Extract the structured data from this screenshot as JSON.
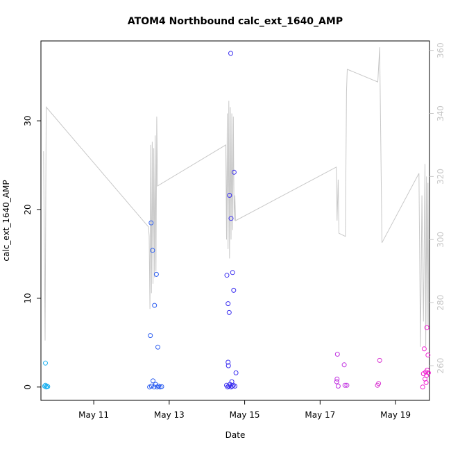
{
  "chart_data": {
    "type": "scatter",
    "title": "ATOM4 Northbound calc_ext_1640_AMP",
    "xlabel": "Date",
    "ylabel": "calc_ext_1640_AMP",
    "xlim_days": [
      9.6,
      19.9
    ],
    "ylim": [
      -1.5,
      39
    ],
    "ylim_right": [
      249,
      363
    ],
    "x_ticks": [
      {
        "day": 11,
        "label": "May 11"
      },
      {
        "day": 13,
        "label": "May 13"
      },
      {
        "day": 15,
        "label": "May 15"
      },
      {
        "day": 17,
        "label": "May 17"
      },
      {
        "day": 19,
        "label": "May 19"
      }
    ],
    "y_ticks": [
      {
        "value": 0,
        "label": "0"
      },
      {
        "value": 10,
        "label": "10"
      },
      {
        "value": 20,
        "label": "20"
      },
      {
        "value": 30,
        "label": "30"
      }
    ],
    "y2_ticks": [
      {
        "value": 260,
        "label": "260"
      },
      {
        "value": 280,
        "label": "280"
      },
      {
        "value": 300,
        "label": "300"
      },
      {
        "value": 320,
        "label": "320"
      },
      {
        "value": 340,
        "label": "340"
      },
      {
        "value": 360,
        "label": "360"
      }
    ],
    "scatter_series": [
      {
        "day": 9.72,
        "value": 2.7,
        "color": "#1ab0f0"
      },
      {
        "day": 9.7,
        "value": 0.1,
        "color": "#1ab0f0"
      },
      {
        "day": 9.72,
        "value": 0.2,
        "color": "#1ab0f0"
      },
      {
        "day": 9.74,
        "value": 0.0,
        "color": "#1ab0f0"
      },
      {
        "day": 9.76,
        "value": 0.1,
        "color": "#1ab0f0"
      },
      {
        "day": 9.78,
        "value": 0.05,
        "color": "#1ab0f0"
      },
      {
        "day": 12.52,
        "value": 18.5,
        "color": "#2a5cf0"
      },
      {
        "day": 12.56,
        "value": 15.4,
        "color": "#2a5cf0"
      },
      {
        "day": 12.66,
        "value": 12.7,
        "color": "#2a5cf0"
      },
      {
        "day": 12.61,
        "value": 9.2,
        "color": "#2a5cf0"
      },
      {
        "day": 12.5,
        "value": 5.8,
        "color": "#2a5cf0"
      },
      {
        "day": 12.7,
        "value": 4.5,
        "color": "#2a5cf0"
      },
      {
        "day": 12.57,
        "value": 0.7,
        "color": "#2a5cf0"
      },
      {
        "day": 12.48,
        "value": 0.0,
        "color": "#2a5cf0"
      },
      {
        "day": 12.53,
        "value": 0.1,
        "color": "#2a5cf0"
      },
      {
        "day": 12.6,
        "value": 0.0,
        "color": "#2a5cf0"
      },
      {
        "day": 12.64,
        "value": 0.3,
        "color": "#2a5cf0"
      },
      {
        "day": 12.68,
        "value": 0.0,
        "color": "#2a5cf0"
      },
      {
        "day": 12.72,
        "value": 0.1,
        "color": "#2a5cf0"
      },
      {
        "day": 12.76,
        "value": 0.0,
        "color": "#2a5cf0"
      },
      {
        "day": 12.8,
        "value": 0.05,
        "color": "#2a5cf0"
      },
      {
        "day": 14.63,
        "value": 37.6,
        "color": "#3a2ef0"
      },
      {
        "day": 14.72,
        "value": 24.2,
        "color": "#3a2ef0"
      },
      {
        "day": 14.6,
        "value": 21.6,
        "color": "#3a2ef0"
      },
      {
        "day": 14.64,
        "value": 19.0,
        "color": "#3a2ef0"
      },
      {
        "day": 14.68,
        "value": 12.9,
        "color": "#3a2ef0"
      },
      {
        "day": 14.53,
        "value": 12.6,
        "color": "#3a2ef0"
      },
      {
        "day": 14.71,
        "value": 10.9,
        "color": "#3a2ef0"
      },
      {
        "day": 14.56,
        "value": 9.4,
        "color": "#3a2ef0"
      },
      {
        "day": 14.59,
        "value": 8.4,
        "color": "#3a2ef0"
      },
      {
        "day": 14.56,
        "value": 2.8,
        "color": "#3a2ef0"
      },
      {
        "day": 14.57,
        "value": 2.4,
        "color": "#3a2ef0"
      },
      {
        "day": 14.77,
        "value": 1.6,
        "color": "#3a2ef0"
      },
      {
        "day": 14.66,
        "value": 0.6,
        "color": "#3a2ef0"
      },
      {
        "day": 14.52,
        "value": 0.2,
        "color": "#3a2ef0"
      },
      {
        "day": 14.55,
        "value": 0.0,
        "color": "#3a2ef0"
      },
      {
        "day": 14.58,
        "value": 0.1,
        "color": "#3a2ef0"
      },
      {
        "day": 14.61,
        "value": 0.3,
        "color": "#3a2ef0"
      },
      {
        "day": 14.64,
        "value": 0.0,
        "color": "#3a2ef0"
      },
      {
        "day": 14.67,
        "value": 0.1,
        "color": "#3a2ef0"
      },
      {
        "day": 14.7,
        "value": 0.2,
        "color": "#3a2ef0"
      },
      {
        "day": 14.74,
        "value": 0.1,
        "color": "#3a2ef0"
      },
      {
        "day": 17.46,
        "value": 3.7,
        "color": "#c030e0"
      },
      {
        "day": 17.45,
        "value": 0.9,
        "color": "#c030e0"
      },
      {
        "day": 17.44,
        "value": 0.6,
        "color": "#c030e0"
      },
      {
        "day": 17.48,
        "value": 0.1,
        "color": "#c030e0"
      },
      {
        "day": 17.64,
        "value": 2.5,
        "color": "#c030e0"
      },
      {
        "day": 17.66,
        "value": 0.2,
        "color": "#c030e0"
      },
      {
        "day": 17.71,
        "value": 0.2,
        "color": "#c030e0"
      },
      {
        "day": 18.58,
        "value": 3.0,
        "color": "#d830d0"
      },
      {
        "day": 18.55,
        "value": 0.4,
        "color": "#d830d0"
      },
      {
        "day": 18.52,
        "value": 0.2,
        "color": "#d830d0"
      },
      {
        "day": 19.83,
        "value": 6.7,
        "color": "#f020d0"
      },
      {
        "day": 19.76,
        "value": 4.3,
        "color": "#f020d0"
      },
      {
        "day": 19.86,
        "value": 3.6,
        "color": "#f020d0"
      },
      {
        "day": 19.74,
        "value": 1.5,
        "color": "#f020d0"
      },
      {
        "day": 19.8,
        "value": 1.7,
        "color": "#f020d0"
      },
      {
        "day": 19.84,
        "value": 1.9,
        "color": "#f020d0"
      },
      {
        "day": 19.82,
        "value": 1.3,
        "color": "#f020d0"
      },
      {
        "day": 19.78,
        "value": 0.9,
        "color": "#f020d0"
      },
      {
        "day": 19.81,
        "value": 0.5,
        "color": "#f020d0"
      },
      {
        "day": 19.72,
        "value": 0.0,
        "color": "#f020d0"
      },
      {
        "day": 19.87,
        "value": 1.6,
        "color": "#f020d0"
      }
    ],
    "line_series": {
      "name": "secondary (right axis)",
      "color": "#c8c8c8",
      "points": [
        [
          9.67,
          328
        ],
        [
          9.71,
          268
        ],
        [
          9.74,
          342
        ],
        [
          12.45,
          304
        ],
        [
          12.47,
          301
        ],
        [
          12.49,
          278
        ],
        [
          12.51,
          330
        ],
        [
          12.53,
          283
        ],
        [
          12.55,
          331
        ],
        [
          12.57,
          286
        ],
        [
          12.59,
          329
        ],
        [
          12.61,
          288
        ],
        [
          12.63,
          333
        ],
        [
          12.65,
          290
        ],
        [
          12.67,
          339
        ],
        [
          12.69,
          317
        ],
        [
          14.5,
          330
        ],
        [
          14.52,
          300
        ],
        [
          14.54,
          340
        ],
        [
          14.56,
          297
        ],
        [
          14.58,
          344
        ],
        [
          14.6,
          294
        ],
        [
          14.62,
          342
        ],
        [
          14.64,
          300
        ],
        [
          14.66,
          340
        ],
        [
          14.68,
          303
        ],
        [
          14.7,
          339
        ],
        [
          14.72,
          306
        ],
        [
          14.74,
          314
        ],
        [
          14.76,
          306
        ],
        [
          17.43,
          323
        ],
        [
          17.45,
          306
        ],
        [
          17.48,
          319
        ],
        [
          17.5,
          302
        ],
        [
          17.67,
          301
        ],
        [
          17.7,
          347
        ],
        [
          17.72,
          354
        ],
        [
          18.53,
          350
        ],
        [
          18.58,
          361
        ],
        [
          18.64,
          299
        ],
        [
          19.62,
          321
        ],
        [
          19.66,
          266
        ],
        [
          19.7,
          314
        ],
        [
          19.74,
          274
        ],
        [
          19.78,
          324
        ],
        [
          19.8,
          266
        ],
        [
          19.82,
          320
        ],
        [
          19.84,
          273
        ],
        [
          19.86,
          318
        ],
        [
          19.88,
          272
        ]
      ]
    }
  }
}
